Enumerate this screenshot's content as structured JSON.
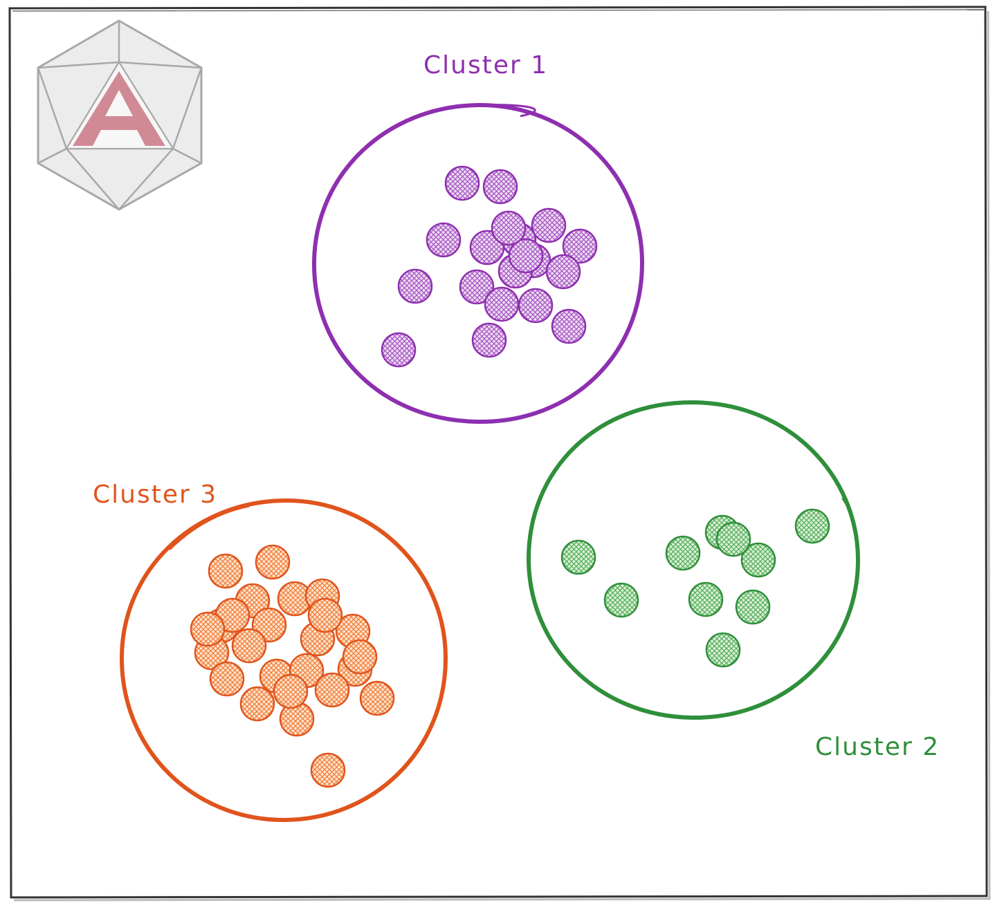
{
  "diagram": {
    "logo": {
      "icon": "icosahedron-letter-a-logo",
      "letter": "A"
    },
    "clusters": [
      {
        "id": "cluster-1",
        "label": "Cluster 1",
        "color": "#8e2fb0",
        "fill": "#d9b8e6",
        "point_count": 19
      },
      {
        "id": "cluster-2",
        "label": "Cluster 2",
        "color": "#2f8f3a",
        "fill": "#b9e0b4",
        "point_count": 10
      },
      {
        "id": "cluster-3",
        "label": "Cluster 3",
        "color": "#e0541c",
        "fill": "#f7c7a4",
        "point_count": 25
      }
    ],
    "frame_color": "#333333",
    "logo_colors": {
      "face": "#e8e8e8",
      "edge": "#a8a8a8",
      "letter": "#d08a96"
    }
  }
}
